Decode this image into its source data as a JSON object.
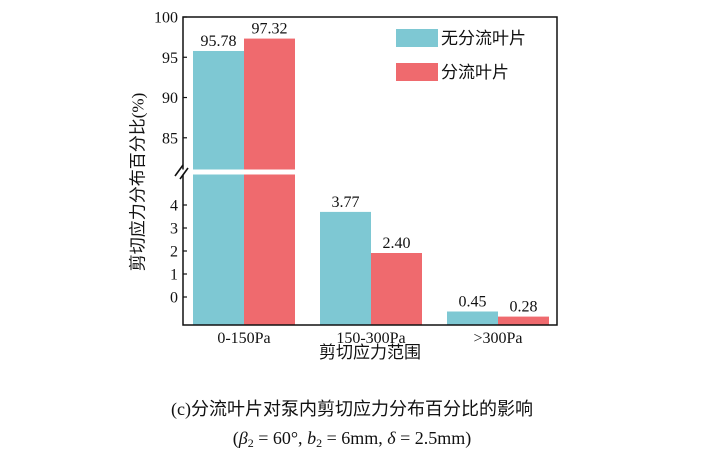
{
  "chart_data": {
    "type": "bar",
    "categories": [
      "0-150Pa",
      "150-300Pa",
      ">300Pa"
    ],
    "series": [
      {
        "name": "无分流叶片",
        "values": [
          95.78,
          3.77,
          0.45
        ],
        "color": "#7ec8d3"
      },
      {
        "name": "分流叶片",
        "values": [
          97.32,
          2.4,
          0.28
        ],
        "color": "#ef6a6e"
      }
    ],
    "xlabel": "剪切应力范围",
    "ylabel": "剪切应力分布百分比(%)",
    "y_axis_break": true,
    "ylim_upper": [
      81,
      100
    ],
    "ylim_lower": [
      0,
      5
    ],
    "yticks_upper": [
      85,
      90,
      95,
      100
    ],
    "yticks_lower": [
      0,
      1,
      2,
      3,
      4
    ],
    "data_labels": true,
    "grid": false,
    "legend": "top-right"
  },
  "caption": {
    "title": "(c)分流叶片对泵内剪切应力分布百分比的影响",
    "open": "(",
    "p1_symbol": "β",
    "p1_sub": "2",
    "p1_value": " = 60°, ",
    "p2_symbol": "b",
    "p2_sub": "2",
    "p2_value": " = 6mm, ",
    "p3_symbol": "δ",
    "p3_value": " = 2.5mm",
    "close": ")"
  }
}
